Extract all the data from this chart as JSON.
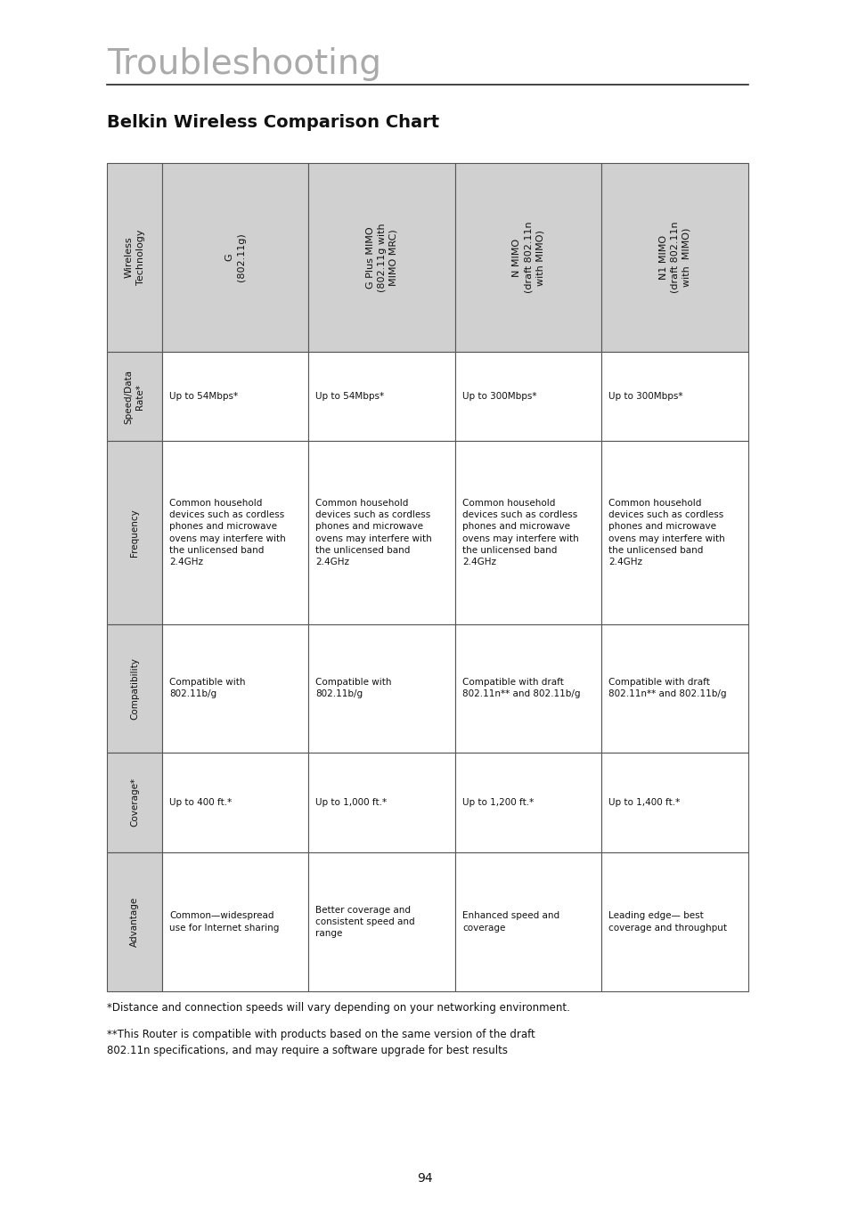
{
  "page_title": "Troubleshooting",
  "chart_title": "Belkin Wireless Comparison Chart",
  "bg_color": "#ffffff",
  "header_bg": "#d0d0d0",
  "row_bg": "#ffffff",
  "label_bg": "#d0d0d0",
  "border_color": "#555555",
  "title_color": "#aaaaaa",
  "text_color": "#111111",
  "footnote1": "*Distance and connection speeds will vary depending on your networking environment.",
  "footnote2": "**This Router is compatible with products based on the same version of the draft\n802.11n specifications, and may require a software upgrade for best results",
  "page_number": "94",
  "col_headers": [
    "Wireless\nTechnology",
    "G\n(802.11g)",
    "G Plus MIMO\n(802.11g with\nMIMO MRC)",
    "N MIMO\n(draft 802.11n\nwith MIMO)",
    "N1 MIMO\n(draft 802.11n\nwith  MIMO)"
  ],
  "row_labels": [
    "Speed/Data\nRate*",
    "Frequency",
    "Compatibility",
    "Coverage*",
    "Advantage"
  ],
  "table_data": [
    [
      "Up to 54Mbps*",
      "Up to 54Mbps*",
      "Up to 300Mbps*",
      "Up to 300Mbps*"
    ],
    [
      "Common household\ndevices such as cordless\nphones and microwave\novens may interfere with\nthe unlicensed band\n2.4GHz",
      "Common household\ndevices such as cordless\nphones and microwave\novens may interfere with\nthe unlicensed band\n2.4GHz",
      "Common household\ndevices such as cordless\nphones and microwave\novens may interfere with\nthe unlicensed band\n2.4GHz",
      "Common household\ndevices such as cordless\nphones and microwave\novens may interfere with\nthe unlicensed band\n2.4GHz"
    ],
    [
      "Compatible with\n802.11b/g",
      "Compatible with\n802.11b/g",
      "Compatible with draft\n802.11n** and 802.11b/g",
      "Compatible with draft\n802.11n** and 802.11b/g"
    ],
    [
      "Up to 400 ft.*",
      "Up to 1,000 ft.*",
      "Up to 1,200 ft.*",
      "Up to 1,400 ft.*"
    ],
    [
      "Common—widespread\nuse for Internet sharing",
      "Better coverage and\nconsistent speed and\nrange",
      "Enhanced speed and\ncoverage",
      "Leading edge— best\ncoverage and throughput"
    ]
  ],
  "row_height_ratios": [
    170,
    80,
    165,
    115,
    90,
    125
  ]
}
